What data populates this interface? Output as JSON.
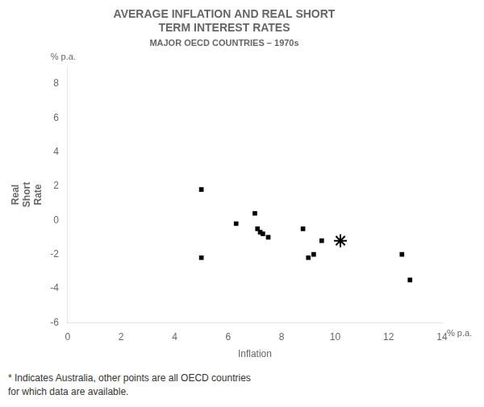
{
  "chart_data": {
    "type": "scatter",
    "title": [
      "AVERAGE INFLATION AND REAL SHORT",
      "TERM INTEREST RATES"
    ],
    "subtitle": "MAJOR OECD COUNTRIES – 1970s",
    "xlabel": "Inflation",
    "ylabel": "Real\nShort\nRate",
    "xlabel_unit": "% p.a.",
    "ylabel_unit": "% p.a.",
    "footnote": [
      "* Indicates Australia, other points are all OECD countries",
      "for which data are available."
    ],
    "xlim": [
      0,
      14
    ],
    "ylim": [
      -6,
      9
    ],
    "xticks": [
      0,
      2,
      4,
      6,
      8,
      10,
      12,
      14
    ],
    "yticks": [
      -6,
      -4,
      -2,
      0,
      2,
      4,
      6,
      8
    ],
    "grid": false,
    "series": [
      {
        "marker": "square",
        "color": "#000000",
        "x": [
          5.0,
          5.0,
          6.3,
          7.0,
          7.1,
          7.2,
          7.3,
          7.5,
          8.8,
          9.0,
          9.2,
          9.5,
          12.5,
          12.8
        ],
        "values": [
          1.8,
          -2.2,
          -0.2,
          0.4,
          -0.5,
          -0.7,
          -0.8,
          -1.0,
          -0.5,
          -2.2,
          -2.0,
          -1.2,
          -2.0,
          -3.5
        ]
      },
      {
        "marker": "star",
        "color": "#000000",
        "x": [
          10.2
        ],
        "values": [
          -1.2
        ]
      }
    ]
  }
}
